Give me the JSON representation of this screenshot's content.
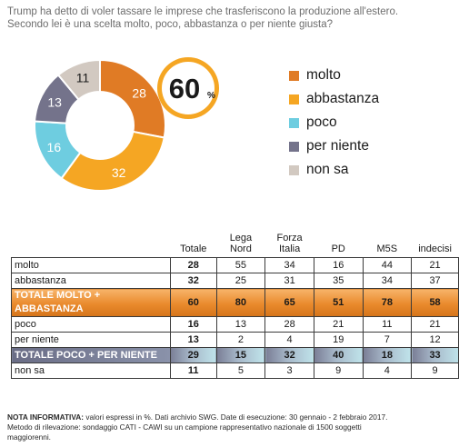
{
  "question": {
    "line1": "Trump ha detto di voler tassare le imprese che trasferiscono la produzione all'estero.",
    "line2": "Secondo lei è una scelta molto, poco, abbastanza o per niente giusta?"
  },
  "chart_data": {
    "type": "pie",
    "donut": true,
    "categories": [
      "molto",
      "abbastanza",
      "poco",
      "per niente",
      "non sa"
    ],
    "values": [
      28,
      32,
      16,
      13,
      11
    ],
    "colors": [
      "#e07b25",
      "#f5a623",
      "#6ecde0",
      "#74738b",
      "#d2c9c1"
    ],
    "highlight": {
      "value": "60",
      "unit": "%"
    },
    "legend_position": "right"
  },
  "table": {
    "headers": [
      "Totale",
      "Lega Nord",
      "Forza Italia",
      "PD",
      "M5S",
      "indecisi"
    ],
    "rows": [
      {
        "label": "molto",
        "values": [
          "28",
          "55",
          "34",
          "16",
          "44",
          "21"
        ],
        "style": "plain"
      },
      {
        "label": "abbastanza",
        "values": [
          "32",
          "25",
          "31",
          "35",
          "34",
          "37"
        ],
        "style": "plain"
      },
      {
        "label": "TOTALE MOLTO + ABBASTANZA",
        "values": [
          "60",
          "80",
          "65",
          "51",
          "78",
          "58"
        ],
        "style": "orange"
      },
      {
        "label": "poco",
        "values": [
          "16",
          "13",
          "28",
          "21",
          "11",
          "21"
        ],
        "style": "plain"
      },
      {
        "label": "per niente",
        "values": [
          "13",
          "2",
          "4",
          "19",
          "7",
          "12"
        ],
        "style": "plain"
      },
      {
        "label": "TOTALE POCO + PER NIENTE",
        "values": [
          "29",
          "15",
          "32",
          "40",
          "18",
          "33"
        ],
        "style": "blue"
      },
      {
        "label": "non sa",
        "values": [
          "11",
          "5",
          "3",
          "9",
          "4",
          "9"
        ],
        "style": "plain"
      }
    ]
  },
  "note": {
    "bold": "NOTA INFORMATIVA:",
    "line1_rest": " valori espressi in %. Dati archivio SWG. Date di esecuzione: 30 gennaio - 2 febbraio 2017.",
    "line2": "Metodo di rilevazione: sondaggio CATI - CAWI su un campione rappresentativo nazionale di 1500 soggetti",
    "line3": "maggiorenni."
  }
}
